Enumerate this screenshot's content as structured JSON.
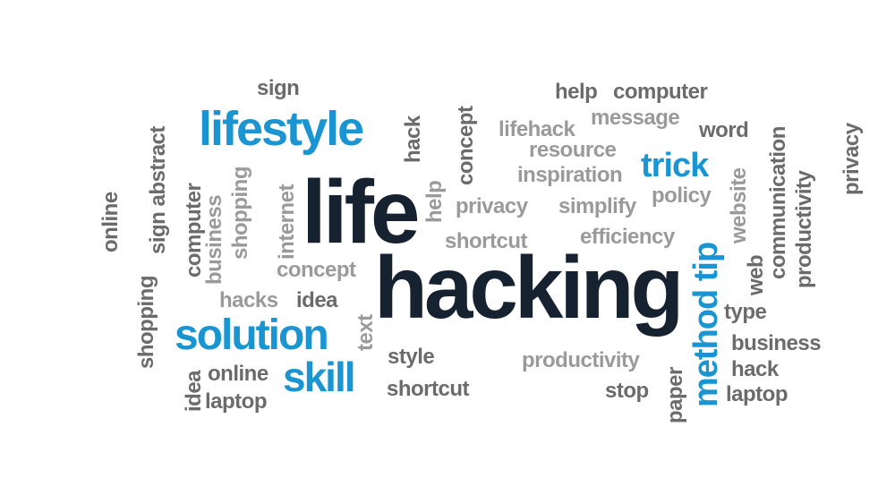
{
  "word_cloud": {
    "primary": {
      "life": "life",
      "hacking": "hacking"
    },
    "blue": {
      "lifestyle": "lifestyle",
      "trick": "trick",
      "solution": "solution",
      "skill": "skill",
      "method_tip": "method tip"
    },
    "grey": {
      "sign": "sign",
      "help_1": "help",
      "computer_1": "computer",
      "message": "message",
      "lifehack": "lifehack",
      "resource": "resource",
      "inspiration": "inspiration",
      "word": "word",
      "policy": "policy",
      "privacy_1": "privacy",
      "simplify": "simplify",
      "shortcut_1": "shortcut",
      "efficiency": "efficiency",
      "concept_1": "concept",
      "hacks": "hacks",
      "idea_1": "idea",
      "type": "type",
      "business_1": "business",
      "hack_1": "hack",
      "laptop_1": "laptop",
      "style": "style",
      "shortcut_2": "shortcut",
      "productivity_1": "productivity",
      "stop": "stop",
      "online_1": "online",
      "laptop_2": "laptop"
    },
    "vertical": {
      "online_2": "online",
      "shopping_1": "shopping",
      "sign_abstract": "sign abstract",
      "computer_2": "computer",
      "business_2": "business",
      "shopping_2": "shopping",
      "internet": "internet",
      "text": "text",
      "idea_2": "idea",
      "hack_2": "hack",
      "concept_2": "concept",
      "help_2": "help",
      "paper": "paper",
      "website": "website",
      "web": "web",
      "communication": "communication",
      "productivity_2": "productivity",
      "privacy_2": "privacy"
    }
  }
}
